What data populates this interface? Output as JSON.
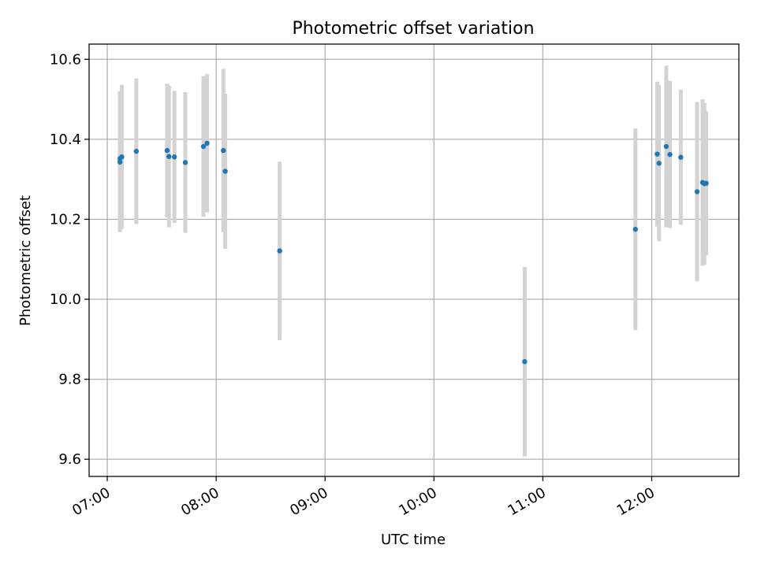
{
  "chart_data": {
    "type": "scatter",
    "title": "Photometric offset variation",
    "xlabel": "UTC time",
    "ylabel": "Photometric offset",
    "x_ticks": [
      "07:00",
      "08:00",
      "09:00",
      "10:00",
      "11:00",
      "12:00"
    ],
    "y_ticks": [
      "9.6",
      "9.8",
      "10.0",
      "10.2",
      "10.4",
      "10.6"
    ],
    "xlim": [
      "06:50",
      "12:48"
    ],
    "ylim": [
      9.557,
      10.638
    ],
    "grid": true,
    "error_bar_color": "#d3d3d3",
    "marker_color": "#1f77b4",
    "points": [
      {
        "x": "07:07",
        "y": 10.343,
        "err": 0.175
      },
      {
        "x": "07:07",
        "y": 10.352,
        "err": 0.168
      },
      {
        "x": "07:08",
        "y": 10.356,
        "err": 0.18
      },
      {
        "x": "07:16",
        "y": 10.37,
        "err": 0.182
      },
      {
        "x": "07:33",
        "y": 10.372,
        "err": 0.167
      },
      {
        "x": "07:34",
        "y": 10.357,
        "err": 0.177
      },
      {
        "x": "07:37",
        "y": 10.356,
        "err": 0.165
      },
      {
        "x": "07:43",
        "y": 10.342,
        "err": 0.176
      },
      {
        "x": "07:53",
        "y": 10.382,
        "err": 0.176
      },
      {
        "x": "07:55",
        "y": 10.39,
        "err": 0.173
      },
      {
        "x": "08:04",
        "y": 10.372,
        "err": 0.204
      },
      {
        "x": "08:05",
        "y": 10.32,
        "err": 0.194
      },
      {
        "x": "08:35",
        "y": 10.121,
        "err": 0.223
      },
      {
        "x": "10:50",
        "y": 9.844,
        "err": 0.237
      },
      {
        "x": "11:51",
        "y": 10.175,
        "err": 0.252
      },
      {
        "x": "12:03",
        "y": 10.363,
        "err": 0.181
      },
      {
        "x": "12:04",
        "y": 10.34,
        "err": 0.195
      },
      {
        "x": "12:08",
        "y": 10.382,
        "err": 0.202
      },
      {
        "x": "12:10",
        "y": 10.362,
        "err": 0.184
      },
      {
        "x": "12:16",
        "y": 10.355,
        "err": 0.169
      },
      {
        "x": "12:25",
        "y": 10.269,
        "err": 0.224
      },
      {
        "x": "12:28",
        "y": 10.292,
        "err": 0.208
      },
      {
        "x": "12:29",
        "y": 10.289,
        "err": 0.202
      },
      {
        "x": "12:30",
        "y": 10.29,
        "err": 0.18
      }
    ]
  }
}
